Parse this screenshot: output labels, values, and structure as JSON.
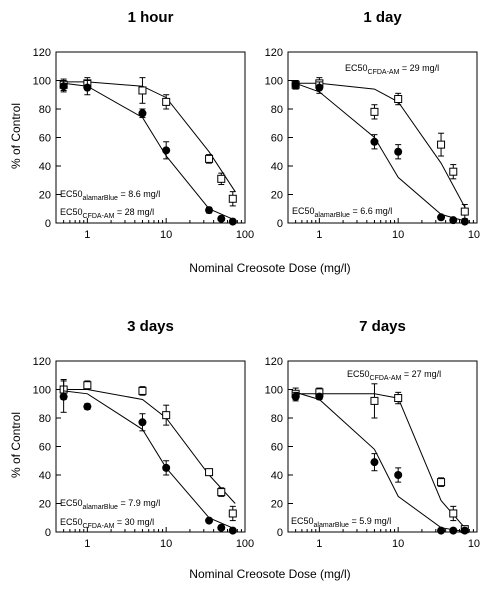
{
  "figure": {
    "xlabel_top": "Nominal Creosote Dose (mg/l)",
    "xlabel_bottom": "Nominal Creosote Dose (mg/l)",
    "ylabel_left_top": "% of Control",
    "ylabel_left_bottom": "% of Control"
  },
  "chart_data": [
    {
      "type": "scatter",
      "title": "1 hour",
      "xlabel": "Nominal Creosote Dose (mg/l)",
      "ylabel": "% of Control",
      "xscale": "log",
      "xlim": [
        0.4,
        100
      ],
      "ylim": [
        0,
        120
      ],
      "xticks": [
        "1",
        "10",
        "100"
      ],
      "yticks": [
        "0",
        "20",
        "40",
        "60",
        "80",
        "100",
        "120"
      ],
      "series": [
        {
          "marker": "open-square",
          "points": [
            {
              "x": 0.5,
              "y": 97,
              "err": 4
            },
            {
              "x": 1,
              "y": 98,
              "err": 4
            },
            {
              "x": 5,
              "y": 93,
              "err": 9
            },
            {
              "x": 10,
              "y": 85,
              "err": 5
            },
            {
              "x": 35,
              "y": 45,
              "err": 3
            },
            {
              "x": 50,
              "y": 31,
              "err": 4
            },
            {
              "x": 70,
              "y": 17,
              "err": 5
            }
          ],
          "fit": [
            {
              "x": 0.5,
              "y": 99
            },
            {
              "x": 1,
              "y": 99
            },
            {
              "x": 5,
              "y": 96
            },
            {
              "x": 10,
              "y": 88
            },
            {
              "x": 35,
              "y": 50
            },
            {
              "x": 75,
              "y": 22
            }
          ]
        },
        {
          "marker": "filled-circle",
          "points": [
            {
              "x": 0.5,
              "y": 96,
              "err": 4
            },
            {
              "x": 1,
              "y": 95,
              "err": 5
            },
            {
              "x": 5,
              "y": 77,
              "err": 3
            },
            {
              "x": 10,
              "y": 51,
              "err": 6
            },
            {
              "x": 35,
              "y": 9,
              "err": 2
            },
            {
              "x": 50,
              "y": 3,
              "err": 1
            },
            {
              "x": 70,
              "y": 1,
              "err": 1
            }
          ],
          "fit": [
            {
              "x": 0.5,
              "y": 98
            },
            {
              "x": 1,
              "y": 96
            },
            {
              "x": 5,
              "y": 74
            },
            {
              "x": 10,
              "y": 47
            },
            {
              "x": 35,
              "y": 10
            },
            {
              "x": 75,
              "y": 2
            }
          ]
        }
      ],
      "annotations": [
        {
          "base": "EC50",
          "sub": "alamarBlue",
          "rest": " = 8.6 mg/l"
        },
        {
          "base": "EC50",
          "sub": "CFDA-AM",
          "rest": " = 28 mg/l"
        }
      ]
    },
    {
      "type": "scatter",
      "title": "1 day",
      "xlabel": "Nominal Creosote Dose (mg/l)",
      "ylabel": "% of Control",
      "xscale": "log",
      "xlim": [
        0.4,
        100
      ],
      "ylim": [
        0,
        120
      ],
      "xticks": [
        "1",
        "10",
        "100"
      ],
      "yticks": [
        "0",
        "20",
        "40",
        "60",
        "80",
        "100",
        "120"
      ],
      "series": [
        {
          "marker": "open-square",
          "points": [
            {
              "x": 0.5,
              "y": 97,
              "err": 3
            },
            {
              "x": 1,
              "y": 98,
              "err": 4
            },
            {
              "x": 5,
              "y": 78,
              "err": 5
            },
            {
              "x": 10,
              "y": 87,
              "err": 4
            },
            {
              "x": 35,
              "y": 55,
              "err": 8
            },
            {
              "x": 50,
              "y": 36,
              "err": 5
            },
            {
              "x": 70,
              "y": 8,
              "err": 5
            }
          ],
          "fit": [
            {
              "x": 0.5,
              "y": 98
            },
            {
              "x": 1,
              "y": 98
            },
            {
              "x": 5,
              "y": 94
            },
            {
              "x": 10,
              "y": 85
            },
            {
              "x": 35,
              "y": 42
            },
            {
              "x": 75,
              "y": 8
            }
          ]
        },
        {
          "marker": "filled-circle",
          "points": [
            {
              "x": 0.5,
              "y": 97,
              "err": 3
            },
            {
              "x": 1,
              "y": 95,
              "err": 4
            },
            {
              "x": 5,
              "y": 57,
              "err": 5
            },
            {
              "x": 10,
              "y": 50,
              "err": 5
            },
            {
              "x": 35,
              "y": 4,
              "err": 1
            },
            {
              "x": 50,
              "y": 2,
              "err": 1
            },
            {
              "x": 70,
              "y": 1,
              "err": 1
            }
          ],
          "fit": [
            {
              "x": 0.5,
              "y": 98
            },
            {
              "x": 1,
              "y": 92
            },
            {
              "x": 5,
              "y": 60
            },
            {
              "x": 10,
              "y": 32
            },
            {
              "x": 35,
              "y": 6
            },
            {
              "x": 75,
              "y": 1
            }
          ]
        }
      ],
      "annotations": [
        {
          "base": "EC50",
          "sub": "CFDA-AM",
          "rest": " = 29 mg/l"
        },
        {
          "base": "EC50",
          "sub": "alamarBlue",
          "rest": " = 6.6 mg/l"
        }
      ]
    },
    {
      "type": "scatter",
      "title": "3 days",
      "xlabel": "Nominal Creosote Dose (mg/l)",
      "ylabel": "% of Control",
      "xscale": "log",
      "xlim": [
        0.4,
        100
      ],
      "ylim": [
        0,
        120
      ],
      "xticks": [
        "1",
        "10",
        "100"
      ],
      "yticks": [
        "0",
        "20",
        "40",
        "60",
        "80",
        "100",
        "120"
      ],
      "series": [
        {
          "marker": "open-square",
          "points": [
            {
              "x": 0.5,
              "y": 100,
              "err": 7
            },
            {
              "x": 1,
              "y": 103,
              "err": 3
            },
            {
              "x": 5,
              "y": 99,
              "err": 3
            },
            {
              "x": 10,
              "y": 82,
              "err": 7
            },
            {
              "x": 35,
              "y": 42,
              "err": 2
            },
            {
              "x": 50,
              "y": 28,
              "err": 3
            },
            {
              "x": 70,
              "y": 13,
              "err": 5
            }
          ],
          "fit": [
            {
              "x": 0.5,
              "y": 100
            },
            {
              "x": 1,
              "y": 100
            },
            {
              "x": 5,
              "y": 93
            },
            {
              "x": 10,
              "y": 80
            },
            {
              "x": 35,
              "y": 40
            },
            {
              "x": 75,
              "y": 20
            }
          ]
        },
        {
          "marker": "filled-circle",
          "points": [
            {
              "x": 0.5,
              "y": 95,
              "err": 11
            },
            {
              "x": 1,
              "y": 88,
              "err": 2
            },
            {
              "x": 5,
              "y": 77,
              "err": 6
            },
            {
              "x": 10,
              "y": 45,
              "err": 5
            },
            {
              "x": 35,
              "y": 8,
              "err": 1
            },
            {
              "x": 50,
              "y": 3,
              "err": 1
            },
            {
              "x": 70,
              "y": 1,
              "err": 1
            }
          ],
          "fit": [
            {
              "x": 0.5,
              "y": 99
            },
            {
              "x": 1,
              "y": 97
            },
            {
              "x": 5,
              "y": 72
            },
            {
              "x": 10,
              "y": 45
            },
            {
              "x": 35,
              "y": 10
            },
            {
              "x": 75,
              "y": 2
            }
          ]
        }
      ],
      "annotations": [
        {
          "base": "EC50",
          "sub": "alamarBlue",
          "rest": " = 7.9 mg/l"
        },
        {
          "base": "EC50",
          "sub": "CFDA-AM",
          "rest": " = 30 mg/l"
        }
      ]
    },
    {
      "type": "scatter",
      "title": "7 days",
      "xlabel": "Nominal Creosote Dose (mg/l)",
      "ylabel": "% of Control",
      "xscale": "log",
      "xlim": [
        0.4,
        100
      ],
      "ylim": [
        0,
        120
      ],
      "xticks": [
        "1",
        "10",
        "100"
      ],
      "yticks": [
        "0",
        "20",
        "40",
        "60",
        "80",
        "100",
        "120"
      ],
      "series": [
        {
          "marker": "open-square",
          "points": [
            {
              "x": 0.5,
              "y": 97,
              "err": 4
            },
            {
              "x": 1,
              "y": 98,
              "err": 3
            },
            {
              "x": 5,
              "y": 92,
              "err": 12
            },
            {
              "x": 10,
              "y": 94,
              "err": 4
            },
            {
              "x": 35,
              "y": 35,
              "err": 3
            },
            {
              "x": 50,
              "y": 13,
              "err": 5
            },
            {
              "x": 70,
              "y": 2,
              "err": 2
            }
          ],
          "fit": [
            {
              "x": 0.5,
              "y": 97
            },
            {
              "x": 1,
              "y": 97
            },
            {
              "x": 5,
              "y": 97
            },
            {
              "x": 10,
              "y": 94
            },
            {
              "x": 35,
              "y": 22
            },
            {
              "x": 75,
              "y": 1
            }
          ]
        },
        {
          "marker": "filled-circle",
          "points": [
            {
              "x": 0.5,
              "y": 95,
              "err": 3
            },
            {
              "x": 1,
              "y": 95,
              "err": 2
            },
            {
              "x": 5,
              "y": 49,
              "err": 6
            },
            {
              "x": 10,
              "y": 40,
              "err": 5
            },
            {
              "x": 35,
              "y": 1,
              "err": 1
            },
            {
              "x": 50,
              "y": 1,
              "err": 1
            },
            {
              "x": 70,
              "y": 1,
              "err": 1
            }
          ],
          "fit": [
            {
              "x": 0.5,
              "y": 98
            },
            {
              "x": 1,
              "y": 93
            },
            {
              "x": 5,
              "y": 58
            },
            {
              "x": 10,
              "y": 25
            },
            {
              "x": 35,
              "y": 3
            },
            {
              "x": 75,
              "y": 0
            }
          ]
        }
      ],
      "annotations": [
        {
          "base": "EC50",
          "sub": "CFDA-AM",
          "rest": " = 27 mg/l"
        },
        {
          "base": "EC50",
          "sub": "alamarBlue",
          "rest": " = 5.9 mg/l"
        }
      ]
    }
  ]
}
